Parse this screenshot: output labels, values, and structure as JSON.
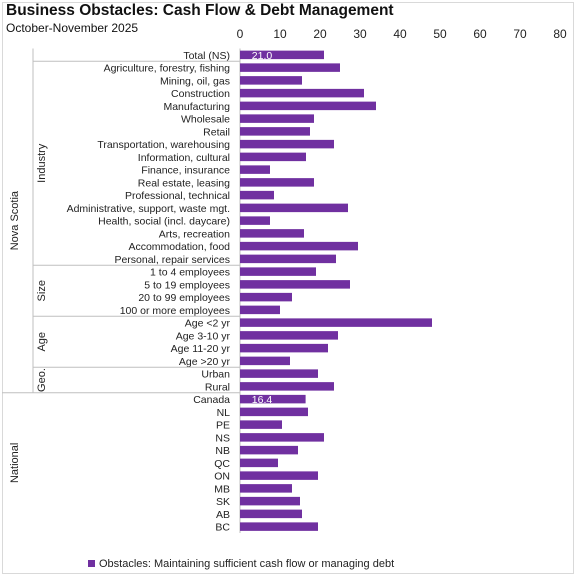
{
  "chart_data": {
    "type": "bar",
    "orientation": "horizontal",
    "title": "Business Obstacles: Cash Flow & Debt Management",
    "subtitle": "October-November 2025",
    "xlim": [
      0,
      80
    ],
    "x_ticks": [
      0,
      10,
      20,
      30,
      40,
      50,
      60,
      70,
      80
    ],
    "x_tick_labels": [
      "0",
      "10",
      "20",
      "30",
      "40",
      "50",
      "60",
      "70",
      "80"
    ],
    "grid": false,
    "legend_position": "bottom",
    "bar_color": "#7030a0",
    "group_labels": {
      "nova_scotia": "Nova Scotia",
      "industry": "Industry",
      "size": "Size",
      "age": "Age",
      "geo": "Geo.",
      "national": "National"
    },
    "categories": [
      "Total (NS)",
      "Agriculture, forestry, fishing",
      "Mining, oil, gas",
      "Construction",
      "Manufacturing",
      "Wholesale",
      "Retail",
      "Transportation, warehousing",
      "Information, cultural",
      "Finance, insurance",
      "Real estate, leasing",
      "Professional, technical",
      "Administrative, support, waste mgt.",
      "Health, social (incl. daycare)",
      "Arts, recreation",
      "Accommodation, food",
      "Personal, repair services",
      "1 to 4 employees",
      "5 to 19 employees",
      "20 to 99 employees",
      "100 or more employees",
      "Age <2 yr",
      "Age 3-10 yr",
      "Age 11-20 yr",
      "Age >20 yr",
      "Urban",
      "Rural",
      "Canada",
      "NL",
      "PE",
      "NS",
      "NB",
      "QC",
      "ON",
      "MB",
      "SK",
      "AB",
      "BC"
    ],
    "series": [
      {
        "name": "Obstacles: Maintaining sufficient cash flow or managing debt",
        "values": [
          21.0,
          25.0,
          15.5,
          31.0,
          34.0,
          18.5,
          17.5,
          23.5,
          16.5,
          7.5,
          18.5,
          8.5,
          27.0,
          7.5,
          16.0,
          29.5,
          24.0,
          19.0,
          27.5,
          13.0,
          10.0,
          48.0,
          24.5,
          22.0,
          12.5,
          19.5,
          23.5,
          16.4,
          17.0,
          10.5,
          21.0,
          14.5,
          9.5,
          19.5,
          13.0,
          15.0,
          15.5,
          19.5
        ]
      }
    ],
    "data_labels": [
      {
        "category": "Total (NS)",
        "text": "21.0"
      },
      {
        "category": "Canada",
        "text": "16.4"
      }
    ]
  }
}
